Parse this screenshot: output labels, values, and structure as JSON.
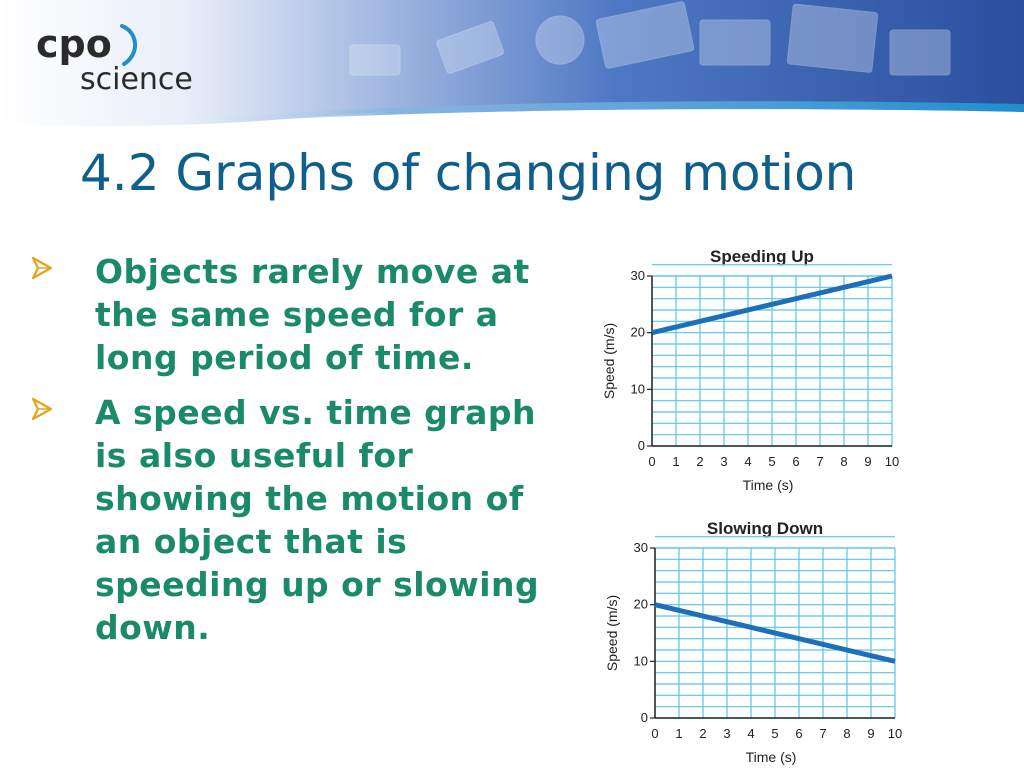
{
  "logo": {
    "line1": "cpo",
    "line2": "science"
  },
  "colors": {
    "title": "#0f5f8a",
    "bullet_text": "#1a8a6a",
    "bullet_arrow": "#e8a21a",
    "grid": "#5bc4e8",
    "line": "#1e6fb8"
  },
  "title": "4.2 Graphs of changing motion",
  "bullets": [
    "Objects rarely move at the same speed for a long period of time.",
    "A speed vs. time graph is also useful for showing the motion of an object that is speeding up or slowing down."
  ],
  "chart_data": [
    {
      "type": "line",
      "title": "Speeding Up",
      "xlabel": "Time (s)",
      "ylabel": "Speed (m/s)",
      "xlim": [
        0,
        10
      ],
      "ylim": [
        0,
        30
      ],
      "x_ticks": [
        0,
        1,
        2,
        3,
        4,
        5,
        6,
        7,
        8,
        9,
        10
      ],
      "y_ticks": [
        0,
        10,
        20,
        30
      ],
      "grid": true,
      "series": [
        {
          "x": [
            0,
            10
          ],
          "y": [
            20,
            30
          ]
        }
      ]
    },
    {
      "type": "line",
      "title": "Slowing Down",
      "xlabel": "Time (s)",
      "ylabel": "Speed (m/s)",
      "xlim": [
        0,
        10
      ],
      "ylim": [
        0,
        30
      ],
      "x_ticks": [
        0,
        1,
        2,
        3,
        4,
        5,
        6,
        7,
        8,
        9,
        10
      ],
      "y_ticks": [
        0,
        10,
        20,
        30
      ],
      "grid": true,
      "series": [
        {
          "x": [
            0,
            10
          ],
          "y": [
            20,
            10
          ]
        }
      ]
    }
  ]
}
